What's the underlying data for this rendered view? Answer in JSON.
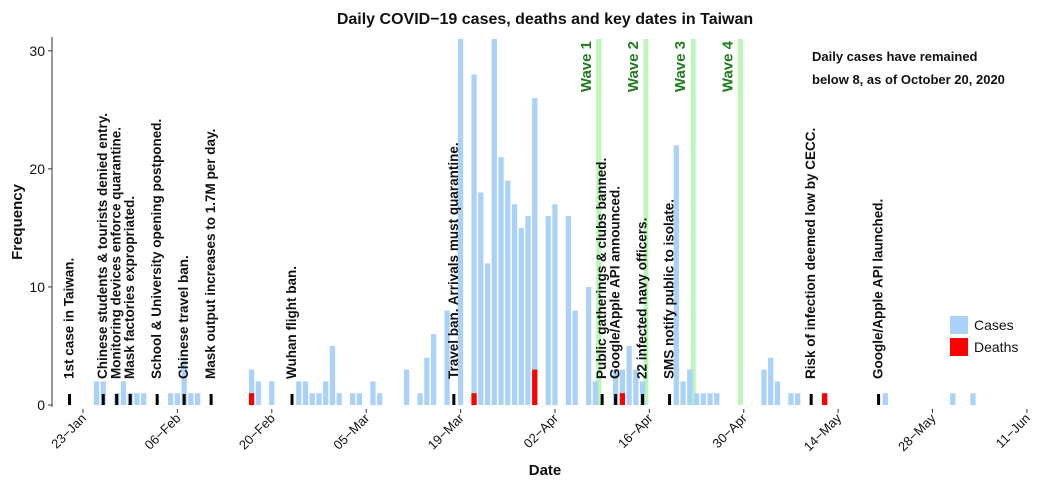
{
  "chart_data": {
    "type": "bar",
    "title": "Daily COVID−19 cases, deaths and key dates in Taiwan",
    "x_label": "Date",
    "y_label": "Frequency",
    "xlim": [
      -4.6,
      141.2
    ],
    "xticks": [
      {
        "value": 0,
        "label": "23−Jan"
      },
      {
        "value": 14,
        "label": "06−Feb"
      },
      {
        "value": 28,
        "label": "20−Feb"
      },
      {
        "value": 42,
        "label": "05−Mar"
      },
      {
        "value": 56,
        "label": "19−Mar"
      },
      {
        "value": 70,
        "label": "02−Apr"
      },
      {
        "value": 84,
        "label": "16−Apr"
      },
      {
        "value": 98,
        "label": "30−Apr"
      },
      {
        "value": 112,
        "label": "14−May"
      },
      {
        "value": 126,
        "label": "28−May"
      },
      {
        "value": 140,
        "label": "11−Jun"
      }
    ],
    "ylim": [
      0,
      31
    ],
    "yticks": [
      0,
      10,
      20,
      30
    ],
    "legend": "right",
    "series": [
      {
        "name": "Cases",
        "color": "#aad1f7",
        "x": [
          2,
          3,
          5,
          6,
          7,
          8,
          9,
          13,
          14,
          15,
          16,
          17,
          25,
          26,
          28,
          32,
          33,
          34,
          35,
          36,
          37,
          38,
          40,
          41,
          43,
          44,
          48,
          50,
          51,
          52,
          54,
          56,
          58,
          59,
          60,
          61,
          62,
          63,
          64,
          65,
          66,
          67,
          69,
          70,
          72,
          73,
          75,
          76,
          79,
          80,
          81,
          82,
          83,
          88,
          89,
          90,
          91,
          92,
          93,
          94,
          101,
          102,
          103,
          105,
          106,
          110,
          119,
          129,
          132
        ],
        "values": [
          2,
          2,
          1,
          2,
          1,
          1,
          1,
          1,
          1,
          4,
          1,
          1,
          3,
          2,
          2,
          2,
          2,
          1,
          1,
          2,
          5,
          1,
          1,
          1,
          2,
          1,
          3,
          1,
          4,
          6,
          8,
          31,
          28,
          18,
          12,
          31,
          21,
          19,
          17,
          15,
          16,
          26,
          16,
          17,
          16,
          8,
          10,
          2,
          3,
          3,
          5,
          3,
          2,
          22,
          2,
          3,
          1,
          1,
          1,
          1,
          3,
          4,
          2,
          1,
          1,
          1,
          1,
          1,
          1
        ]
      },
      {
        "name": "Deaths",
        "color": "#ff0000",
        "x": [
          25,
          58,
          67,
          80,
          110
        ],
        "values": [
          1,
          1,
          3,
          1,
          1
        ]
      }
    ],
    "events": [
      {
        "x": -2,
        "label": "1st case in Taiwan."
      },
      {
        "x": 3,
        "label": "Chinese students & tourists denied entry."
      },
      {
        "x": 5,
        "label": "Monitoring devices enforce quarantine."
      },
      {
        "x": 7,
        "label": "Mask factories expropriated."
      },
      {
        "x": 11,
        "label": "School & University opening postponed."
      },
      {
        "x": 15,
        "label": "Chinese travel ban."
      },
      {
        "x": 19,
        "label": "Mask output increases to 1.7M per day."
      },
      {
        "x": 31,
        "label": "Wuhan flight ban."
      },
      {
        "x": 55,
        "label": "Travel ban. Arrivals must quarantine."
      },
      {
        "x": 77,
        "label": "Public gatherings & clubs banned."
      },
      {
        "x": 79,
        "label": "Google/Apple API announced."
      },
      {
        "x": 83,
        "label": "22 infected navy officers."
      },
      {
        "x": 87,
        "label": "SMS notify public to isolate."
      },
      {
        "x": 108,
        "label": "Risk of infection deemed low by CECC."
      },
      {
        "x": 118,
        "label": "Google/Apple API launched."
      }
    ],
    "waves": [
      {
        "x": 76.5,
        "label": "Wave 1"
      },
      {
        "x": 83.5,
        "label": "Wave 2"
      },
      {
        "x": 90.5,
        "label": "Wave 3"
      },
      {
        "x": 97.5,
        "label": "Wave 4"
      }
    ],
    "annotation": [
      "Daily cases have remained",
      "below 8, as of October 20, 2020"
    ]
  }
}
